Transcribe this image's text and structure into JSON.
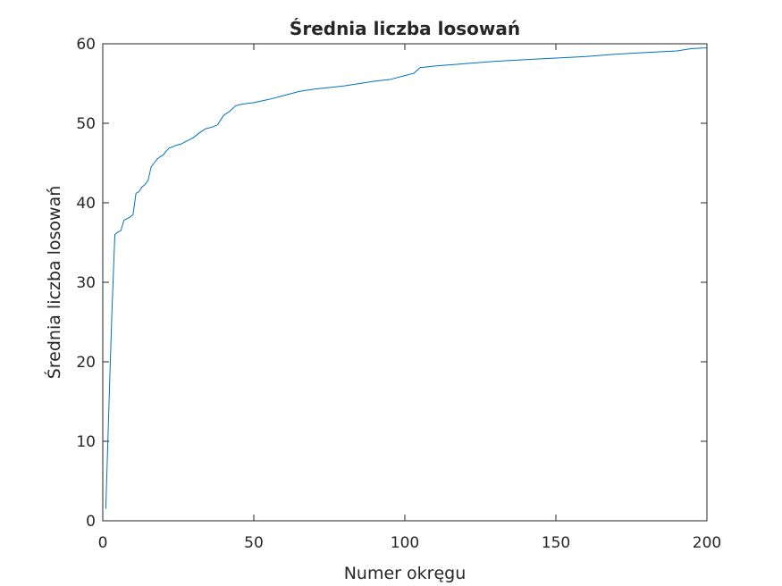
{
  "chart_data": {
    "type": "line",
    "title": "Średnia liczba losowań",
    "xlabel": "Numer okręgu",
    "ylabel": "Średnia liczba losowań",
    "xlim": [
      0,
      200
    ],
    "ylim": [
      0,
      60
    ],
    "xticks": [
      "0",
      "50",
      "100",
      "150",
      "200"
    ],
    "yticks": [
      "0",
      "10",
      "20",
      "30",
      "40",
      "50",
      "60"
    ],
    "grid": false,
    "legend": "none",
    "line_color": "#0072BD",
    "series": [
      {
        "x": [
          1,
          2,
          3,
          4,
          5,
          6,
          7,
          8,
          9,
          10,
          11,
          12,
          13,
          14,
          15,
          16,
          17,
          18,
          19,
          20,
          21,
          22,
          23,
          24,
          25,
          26,
          28,
          30,
          32,
          34,
          36,
          38,
          40,
          42,
          44,
          46,
          48,
          50,
          55,
          60,
          65,
          70,
          75,
          80,
          85,
          90,
          95,
          100,
          103,
          105,
          110,
          120,
          130,
          140,
          150,
          160,
          170,
          180,
          190,
          195,
          200
        ],
        "y": [
          1.5,
          14,
          26,
          36,
          36.3,
          36.5,
          37.8,
          38.0,
          38.2,
          38.5,
          41.2,
          41.4,
          42.0,
          42.3,
          42.8,
          44.5,
          45.0,
          45.5,
          45.8,
          46.0,
          46.5,
          46.9,
          47.0,
          47.2,
          47.3,
          47.4,
          47.8,
          48.2,
          48.8,
          49.3,
          49.5,
          49.8,
          51.0,
          51.5,
          52.2,
          52.4,
          52.5,
          52.6,
          53.0,
          53.5,
          54.0,
          54.3,
          54.5,
          54.7,
          55.0,
          55.3,
          55.5,
          56.0,
          56.3,
          57.0,
          57.2,
          57.5,
          57.8,
          58.0,
          58.2,
          58.4,
          58.7,
          58.9,
          59.1,
          59.4,
          59.5
        ]
      }
    ]
  }
}
